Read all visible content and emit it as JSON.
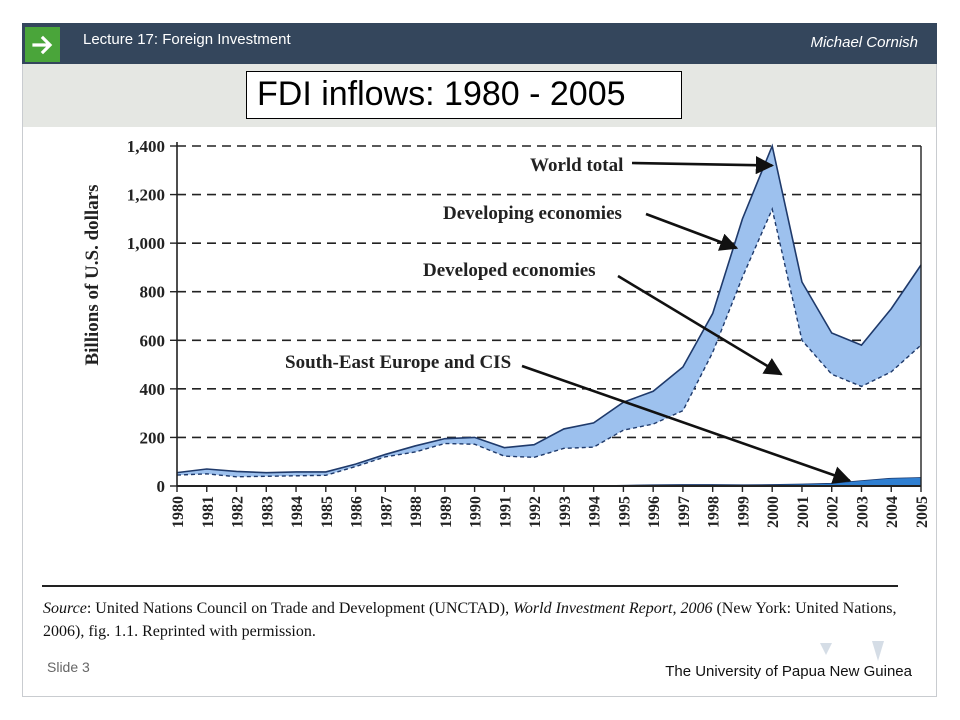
{
  "header": {
    "lecture": "Lecture 17:  Foreign Investment",
    "author": "Michael Cornish"
  },
  "slide": {
    "title": "FDI inflows: 1980 - 2005",
    "number": "Slide 3",
    "institution": "The University of Papua New Guinea"
  },
  "source": {
    "label": "Source",
    "text1": ": United Nations Council on Trade and Development (UNCTAD), ",
    "book": "World Investment Report, 2006",
    "text2": " (New York: United Nations, 2006), fig. 1.1. Reprinted with permission."
  },
  "colors": {
    "header_bg": "#34465c",
    "arrow_badge": "#4aa53a",
    "area_fill": "#9dc1ee",
    "area_stroke": "#1f3a6b",
    "see_cis_fill": "#2f7fd1"
  },
  "chart_data": {
    "type": "area",
    "ylabel": "Billions of U.S. dollars",
    "ylim": [
      0,
      1400
    ],
    "yticks": [
      0,
      200,
      400,
      600,
      800,
      1000,
      1200,
      1400
    ],
    "ytick_labels": [
      "0",
      "200",
      "400",
      "600",
      "800",
      "1,000",
      "1,200",
      "1,400"
    ],
    "grid": "dashed horizontal lines",
    "x": [
      "1980",
      "1981",
      "1982",
      "1983",
      "1984",
      "1985",
      "1986",
      "1987",
      "1988",
      "1989",
      "1990",
      "1991",
      "1992",
      "1993",
      "1994",
      "1995",
      "1996",
      "1997",
      "1998",
      "1999",
      "2000",
      "2001",
      "2002",
      "2003",
      "2004",
      "2005"
    ],
    "series": [
      {
        "name": "World total",
        "values": [
          55,
          70,
          60,
          55,
          58,
          58,
          90,
          130,
          165,
          195,
          200,
          158,
          170,
          235,
          260,
          345,
          390,
          490,
          710,
          1100,
          1400,
          840,
          630,
          580,
          730,
          910
        ]
      },
      {
        "name": "Developed economies",
        "values": [
          45,
          50,
          38,
          40,
          42,
          44,
          80,
          120,
          140,
          175,
          172,
          123,
          118,
          155,
          160,
          230,
          255,
          310,
          550,
          860,
          1140,
          600,
          460,
          410,
          470,
          580
        ]
      },
      {
        "name": "South-East Europe and CIS",
        "values": [
          0,
          0,
          0,
          0,
          0,
          0,
          0,
          0,
          0,
          0,
          0,
          0,
          1,
          1,
          1,
          3,
          5,
          6,
          6,
          5,
          6,
          8,
          11,
          22,
          32,
          35
        ]
      }
    ],
    "annotations": [
      {
        "text": "World total",
        "year": 2000,
        "value": 1320
      },
      {
        "text": "Developing economies",
        "year": 1998.8,
        "value": 980
      },
      {
        "text": "Developed economies",
        "year": 2000.3,
        "value": 460
      },
      {
        "text": "South-East Europe and CIS",
        "year": 2002.6,
        "value": 22
      }
    ]
  }
}
